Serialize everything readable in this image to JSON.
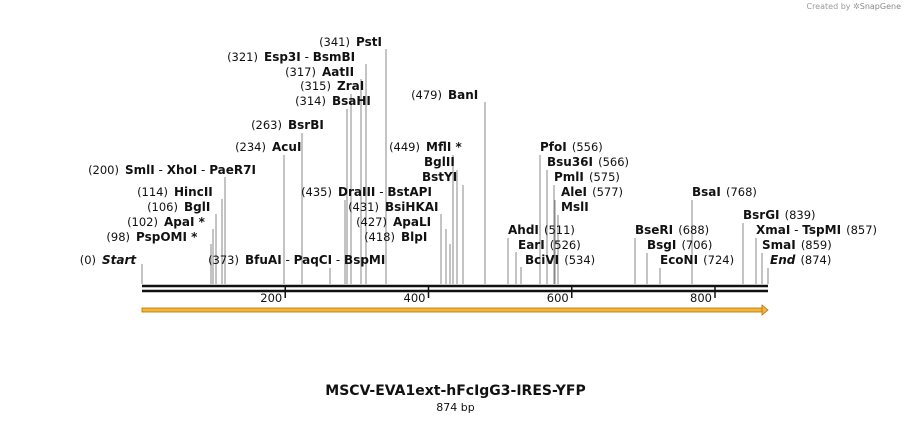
{
  "credit": {
    "text": "Created by",
    "brand": "SnapGene"
  },
  "plasmid": {
    "name": "MSCV-EVA1ext-hFcIgG3-IRES-YFP",
    "length_label": "874 bp",
    "length": 874
  },
  "axis": {
    "ticks": [
      200,
      400,
      600,
      800
    ]
  },
  "feature": {
    "start": 0,
    "end": 874,
    "color": "#f5b43c"
  },
  "sites": [
    {
      "pos": "(0)",
      "names": [
        "Start"
      ],
      "coord": 0,
      "italic": true
    },
    {
      "pos": "(98)",
      "names": [
        "PspOMI *"
      ],
      "coord": 98
    },
    {
      "pos": "(102)",
      "names": [
        "ApaI *"
      ],
      "coord": 102
    },
    {
      "pos": "(106)",
      "names": [
        "BglI"
      ],
      "coord": 106
    },
    {
      "pos": "(114)",
      "names": [
        "HincII"
      ],
      "coord": 114
    },
    {
      "pos": "(200)",
      "names": [
        "SmlI",
        "XhoI",
        "PaeR7I"
      ],
      "coord": 200
    },
    {
      "pos": "(234)",
      "names": [
        "AcuI"
      ],
      "coord": 234
    },
    {
      "pos": "(263)",
      "names": [
        "BsrBI"
      ],
      "coord": 263
    },
    {
      "pos": "(314)",
      "names": [
        "BsaHI"
      ],
      "coord": 314
    },
    {
      "pos": "(315)",
      "names": [
        "ZraI"
      ],
      "coord": 315
    },
    {
      "pos": "(317)",
      "names": [
        "AatII"
      ],
      "coord": 317
    },
    {
      "pos": "(321)",
      "names": [
        "Esp3I",
        "BsmBI"
      ],
      "coord": 321
    },
    {
      "pos": "(341)",
      "names": [
        "PstI"
      ],
      "coord": 341
    },
    {
      "pos": "(373)",
      "names": [
        "BfuAI",
        "PaqCI",
        "BspMI"
      ],
      "coord": 373
    },
    {
      "pos": "(435)",
      "names": [
        "DraIII",
        "BstAPI"
      ],
      "coord": 435
    },
    {
      "pos": "(431)",
      "names": [
        "BsiHKAI"
      ],
      "coord": 431
    },
    {
      "pos": "(427)",
      "names": [
        "ApaLI"
      ],
      "coord": 427
    },
    {
      "pos": "(418)",
      "names": [
        "BlpI"
      ],
      "coord": 418
    },
    {
      "pos": "(449)",
      "names": [
        "MflI *"
      ],
      "coord": 449
    },
    {
      "pos": "",
      "names": [
        "BglII"
      ],
      "coord": 449
    },
    {
      "pos": "",
      "names": [
        "BstYI"
      ],
      "coord": 449
    },
    {
      "pos": "(479)",
      "names": [
        "BanI"
      ],
      "coord": 479
    },
    {
      "pos": "(511)",
      "names": [
        "AhdI"
      ],
      "coord": 511
    },
    {
      "pos": "(526)",
      "names": [
        "EarI"
      ],
      "coord": 526
    },
    {
      "pos": "(534)",
      "names": [
        "BciVI"
      ],
      "coord": 534
    },
    {
      "pos": "(556)",
      "names": [
        "PfoI"
      ],
      "coord": 556
    },
    {
      "pos": "(566)",
      "names": [
        "Bsu36I"
      ],
      "coord": 566
    },
    {
      "pos": "(575)",
      "names": [
        "PmlI"
      ],
      "coord": 575
    },
    {
      "pos": "(577)",
      "names": [
        "AleI"
      ],
      "coord": 577
    },
    {
      "pos": "",
      "names": [
        "MslI"
      ],
      "coord": 577
    },
    {
      "pos": "(688)",
      "names": [
        "BseRI"
      ],
      "coord": 688
    },
    {
      "pos": "(706)",
      "names": [
        "BsgI"
      ],
      "coord": 706
    },
    {
      "pos": "(724)",
      "names": [
        "EcoNI"
      ],
      "coord": 724
    },
    {
      "pos": "(768)",
      "names": [
        "BsaI"
      ],
      "coord": 768
    },
    {
      "pos": "(839)",
      "names": [
        "BsrGI"
      ],
      "coord": 839
    },
    {
      "pos": "(857)",
      "names": [
        "XmaI",
        "TspMI"
      ],
      "coord": 857
    },
    {
      "pos": "(859)",
      "names": [
        "SmaI"
      ],
      "coord": 859
    },
    {
      "pos": "(874)",
      "names": [
        "End"
      ],
      "coord": 874,
      "italic": true
    }
  ]
}
